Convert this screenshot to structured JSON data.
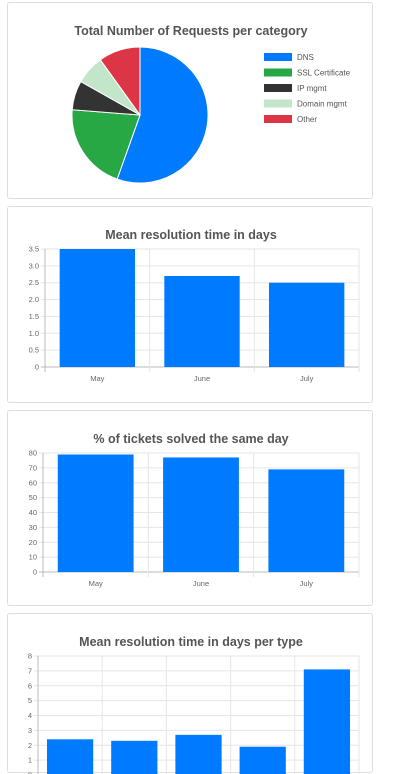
{
  "chart_data": [
    {
      "type": "pie",
      "title": "Total Number of Requests per category",
      "categories": [
        "DNS",
        "SSL Certificate",
        "IP mgmt",
        "Domain mgmt",
        "Other"
      ],
      "values": [
        56,
        21,
        7,
        7,
        10
      ],
      "colors": [
        "#007bff",
        "#28a745",
        "#333333",
        "#c3e6cb",
        "#dc3545"
      ],
      "legend_position": "right"
    },
    {
      "type": "bar",
      "title": "Mean resolution time in days",
      "categories": [
        "May",
        "June",
        "July"
      ],
      "values": [
        3.5,
        2.7,
        2.5
      ],
      "ylim": [
        0,
        3.5
      ],
      "yticks": [
        "0",
        "0.5",
        "1.0",
        "1.5",
        "2.0",
        "2.5",
        "3.0",
        "3.5"
      ],
      "color": "#007bff",
      "grid": true
    },
    {
      "type": "bar",
      "title": "% of tickets solved the same day",
      "categories": [
        "May",
        "June",
        "July"
      ],
      "values": [
        79,
        77,
        69
      ],
      "ylim": [
        0,
        80
      ],
      "yticks": [
        "0",
        "10",
        "20",
        "30",
        "40",
        "50",
        "60",
        "70",
        "80"
      ],
      "color": "#007bff",
      "grid": true
    },
    {
      "type": "bar",
      "title": "Mean resolution time in days per type",
      "values": [
        2.4,
        2.3,
        2.7,
        1.9,
        7.1
      ],
      "ylim": [
        0,
        8
      ],
      "yticks": [
        "0",
        "1",
        "2",
        "3",
        "4",
        "5",
        "6",
        "7",
        "8"
      ],
      "color": "#007bff",
      "grid": true
    }
  ]
}
